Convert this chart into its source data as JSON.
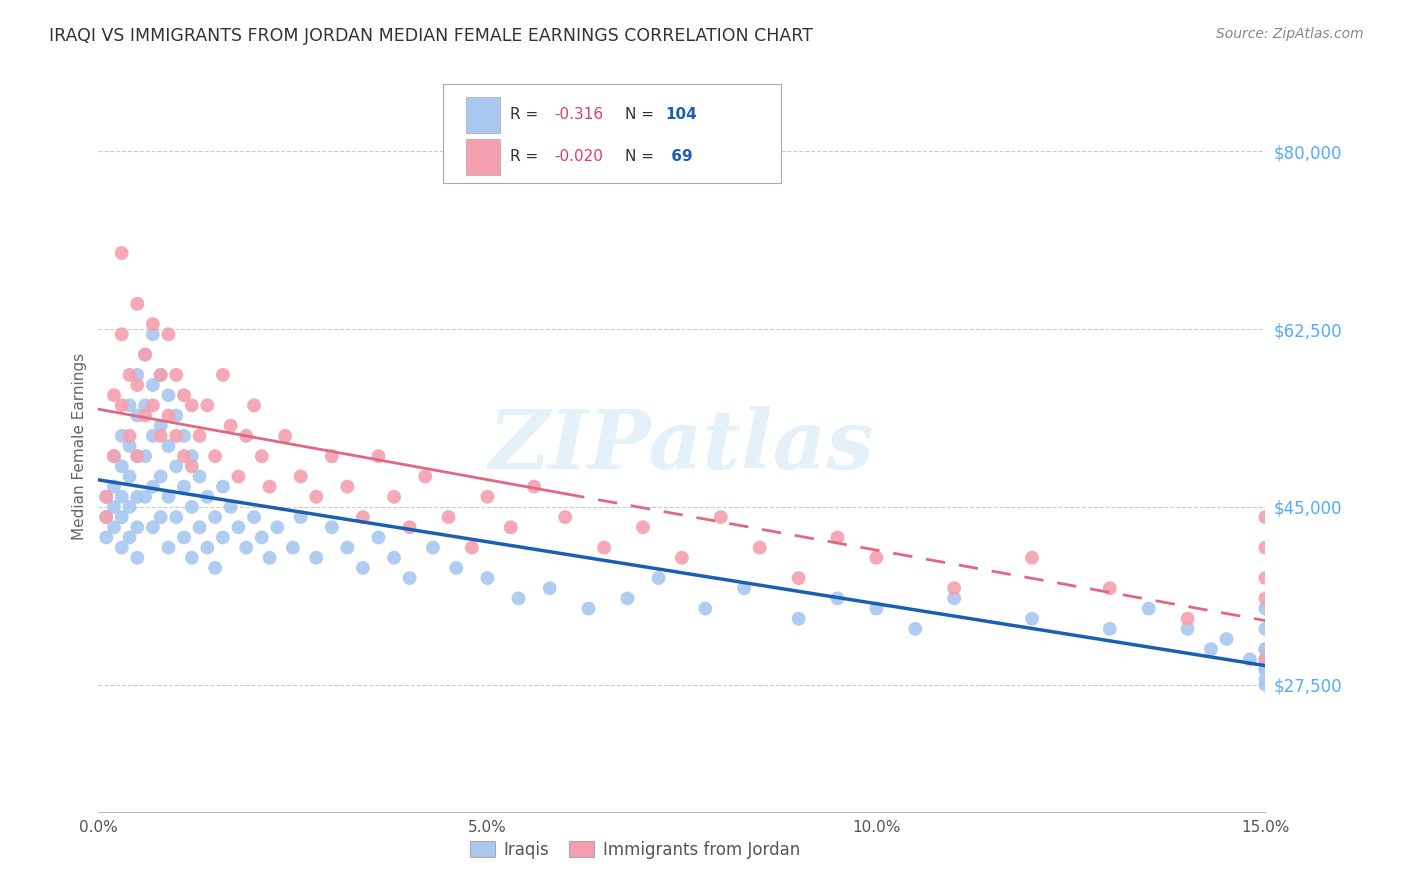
{
  "title": "IRAQI VS IMMIGRANTS FROM JORDAN MEDIAN FEMALE EARNINGS CORRELATION CHART",
  "source": "Source: ZipAtlas.com",
  "ylabel": "Median Female Earnings",
  "ytick_labels": [
    "$27,500",
    "$45,000",
    "$62,500",
    "$80,000"
  ],
  "ytick_values": [
    27500,
    45000,
    62500,
    80000
  ],
  "xmin": 0.0,
  "xmax": 0.15,
  "ymin": 15000,
  "ymax": 87000,
  "legend_r_iraqi": "-0.316",
  "legend_n_iraqi": "104",
  "legend_r_jordan": "-0.020",
  "legend_n_jordan": "69",
  "iraqi_color": "#a8c8f0",
  "jordan_color": "#f4a0b0",
  "line_iraqi_color": "#1a5fb4",
  "line_jordan_color": "#e06880",
  "watermark": "ZIPatlas",
  "background_color": "#ffffff",
  "grid_color": "#cccccc",
  "title_color": "#333333",
  "axis_label_color": "#666666",
  "ytick_color": "#55aaff",
  "iraqi_x": [
    0.001,
    0.001,
    0.001,
    0.002,
    0.002,
    0.002,
    0.002,
    0.003,
    0.003,
    0.003,
    0.003,
    0.003,
    0.004,
    0.004,
    0.004,
    0.004,
    0.004,
    0.005,
    0.005,
    0.005,
    0.005,
    0.005,
    0.005,
    0.006,
    0.006,
    0.006,
    0.006,
    0.007,
    0.007,
    0.007,
    0.007,
    0.007,
    0.008,
    0.008,
    0.008,
    0.008,
    0.009,
    0.009,
    0.009,
    0.009,
    0.01,
    0.01,
    0.01,
    0.011,
    0.011,
    0.011,
    0.012,
    0.012,
    0.012,
    0.013,
    0.013,
    0.014,
    0.014,
    0.015,
    0.015,
    0.016,
    0.016,
    0.017,
    0.018,
    0.019,
    0.02,
    0.021,
    0.022,
    0.023,
    0.025,
    0.026,
    0.028,
    0.03,
    0.032,
    0.034,
    0.036,
    0.038,
    0.04,
    0.043,
    0.046,
    0.05,
    0.054,
    0.058,
    0.063,
    0.068,
    0.072,
    0.078,
    0.083,
    0.09,
    0.095,
    0.1,
    0.105,
    0.11,
    0.12,
    0.13,
    0.135,
    0.14,
    0.143,
    0.145,
    0.148,
    0.15,
    0.15,
    0.15,
    0.15,
    0.15,
    0.15,
    0.15,
    0.15,
    0.15
  ],
  "iraqi_y": [
    46000,
    44000,
    42000,
    50000,
    47000,
    45000,
    43000,
    52000,
    49000,
    46000,
    44000,
    41000,
    55000,
    51000,
    48000,
    45000,
    42000,
    58000,
    54000,
    50000,
    46000,
    43000,
    40000,
    60000,
    55000,
    50000,
    46000,
    62000,
    57000,
    52000,
    47000,
    43000,
    58000,
    53000,
    48000,
    44000,
    56000,
    51000,
    46000,
    41000,
    54000,
    49000,
    44000,
    52000,
    47000,
    42000,
    50000,
    45000,
    40000,
    48000,
    43000,
    46000,
    41000,
    44000,
    39000,
    47000,
    42000,
    45000,
    43000,
    41000,
    44000,
    42000,
    40000,
    43000,
    41000,
    44000,
    40000,
    43000,
    41000,
    39000,
    42000,
    40000,
    38000,
    41000,
    39000,
    38000,
    36000,
    37000,
    35000,
    36000,
    38000,
    35000,
    37000,
    34000,
    36000,
    35000,
    33000,
    36000,
    34000,
    33000,
    35000,
    33000,
    31000,
    32000,
    30000,
    31000,
    29000,
    35000,
    33000,
    31000,
    30000,
    29000,
    28000,
    27500
  ],
  "jordan_x": [
    0.001,
    0.001,
    0.002,
    0.002,
    0.003,
    0.003,
    0.003,
    0.004,
    0.004,
    0.005,
    0.005,
    0.005,
    0.006,
    0.006,
    0.007,
    0.007,
    0.008,
    0.008,
    0.009,
    0.009,
    0.01,
    0.01,
    0.011,
    0.011,
    0.012,
    0.012,
    0.013,
    0.014,
    0.015,
    0.016,
    0.017,
    0.018,
    0.019,
    0.02,
    0.021,
    0.022,
    0.024,
    0.026,
    0.028,
    0.03,
    0.032,
    0.034,
    0.036,
    0.038,
    0.04,
    0.042,
    0.045,
    0.048,
    0.05,
    0.053,
    0.056,
    0.06,
    0.065,
    0.07,
    0.075,
    0.08,
    0.085,
    0.09,
    0.095,
    0.1,
    0.11,
    0.12,
    0.13,
    0.14,
    0.15,
    0.15,
    0.15,
    0.15,
    0.15
  ],
  "jordan_y": [
    46000,
    44000,
    56000,
    50000,
    70000,
    62000,
    55000,
    58000,
    52000,
    65000,
    57000,
    50000,
    60000,
    54000,
    63000,
    55000,
    58000,
    52000,
    62000,
    54000,
    58000,
    52000,
    56000,
    50000,
    55000,
    49000,
    52000,
    55000,
    50000,
    58000,
    53000,
    48000,
    52000,
    55000,
    50000,
    47000,
    52000,
    48000,
    46000,
    50000,
    47000,
    44000,
    50000,
    46000,
    43000,
    48000,
    44000,
    41000,
    46000,
    43000,
    47000,
    44000,
    41000,
    43000,
    40000,
    44000,
    41000,
    38000,
    42000,
    40000,
    37000,
    40000,
    37000,
    34000,
    44000,
    41000,
    38000,
    36000,
    30000
  ]
}
